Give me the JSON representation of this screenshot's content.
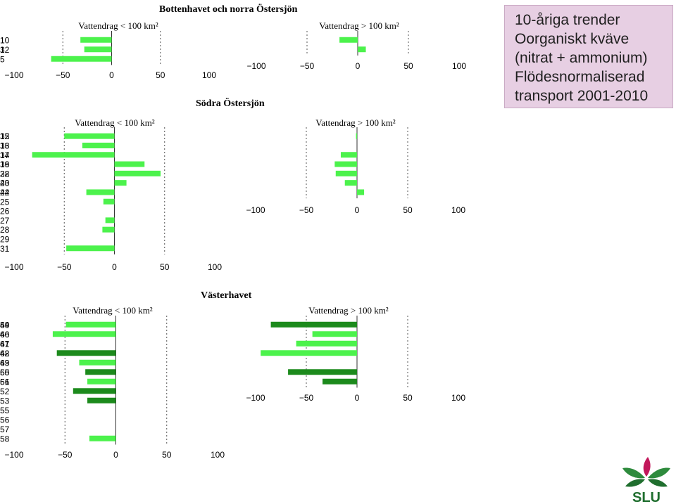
{
  "regions": [
    {
      "id": "bottenhavet",
      "title": "Bottenhavet och norra Östersjön"
    },
    {
      "id": "sodra",
      "title": "Södra Östersjön"
    },
    {
      "id": "vasterhavet",
      "title": "Västerhavet"
    }
  ],
  "info_box": {
    "lines": [
      "10-åriga trender",
      "Oorganiskt kväve",
      "(nitrat + ammonium)",
      "Flödesnormaliserad",
      "transport 2001-2010"
    ]
  },
  "logo": {
    "text": "SLU",
    "icon": "slu-leaf-logo-icon"
  },
  "colors": {
    "light_green": "#4cf24c",
    "dark_green": "#1c8a1c",
    "grid": "#555555"
  },
  "chart_data": [
    {
      "id": "bn-small",
      "type": "bar",
      "orientation": "horizontal",
      "title": "Vattendrag < 100 km²",
      "xlim": [
        -100,
        100
      ],
      "xticks": [
        "−100",
        "−50",
        "0",
        "50",
        "100"
      ],
      "bars": [
        {
          "label": "1",
          "value": -32,
          "color": "light"
        },
        {
          "label": "3",
          "value": -28,
          "color": "light"
        },
        {
          "label": "5",
          "value": -62,
          "color": "light"
        }
      ]
    },
    {
      "id": "bn-large",
      "type": "bar",
      "orientation": "horizontal",
      "title": "Vattendrag > 100 km²",
      "xlim": [
        -100,
        100
      ],
      "xticks": [
        "−100",
        "−50",
        "0",
        "50",
        "100"
      ],
      "bars": [
        {
          "label": "10",
          "value": -18,
          "color": "light"
        },
        {
          "label": "12",
          "value": 8,
          "color": "light"
        }
      ]
    },
    {
      "id": "so-small",
      "type": "bar",
      "orientation": "horizontal",
      "title": "Vattendrag < 100 km²",
      "xlim": [
        -100,
        100
      ],
      "xticks": [
        "−100",
        "−50",
        "0",
        "50",
        "100"
      ],
      "bars": [
        {
          "label": "15",
          "value": -50,
          "color": "light"
        },
        {
          "label": "16",
          "value": -32,
          "color": "light"
        },
        {
          "label": "17",
          "value": -82,
          "color": "light"
        },
        {
          "label": "19",
          "value": 30,
          "color": "light"
        },
        {
          "label": "22",
          "value": 46,
          "color": "light"
        },
        {
          "label": "23",
          "value": 12,
          "color": "light"
        },
        {
          "label": "24",
          "value": -28,
          "color": "light"
        },
        {
          "label": "25",
          "value": -11,
          "color": "light"
        },
        {
          "label": "26",
          "value": null,
          "color": "light"
        },
        {
          "label": "27",
          "value": -9,
          "color": "light"
        },
        {
          "label": "28",
          "value": -12,
          "color": "light"
        },
        {
          "label": "29",
          "value": null,
          "color": "light"
        },
        {
          "label": "31",
          "value": -48,
          "color": "light"
        }
      ]
    },
    {
      "id": "so-large",
      "type": "bar",
      "orientation": "horizontal",
      "title": "Vattendrag > 100 km²",
      "xlim": [
        -100,
        100
      ],
      "xticks": [
        "−100",
        "−50",
        "0",
        "50",
        "100"
      ],
      "bars": [
        {
          "label": "32",
          "value": -1,
          "color": "light"
        },
        {
          "label": "33",
          "value": null,
          "color": "light"
        },
        {
          "label": "34",
          "value": -16,
          "color": "light"
        },
        {
          "label": "36",
          "value": -22,
          "color": "light"
        },
        {
          "label": "38",
          "value": -21,
          "color": "light"
        },
        {
          "label": "40",
          "value": -12,
          "color": "light"
        },
        {
          "label": "42",
          "value": 7,
          "color": "light"
        }
      ]
    },
    {
      "id": "vh-small",
      "type": "bar",
      "orientation": "horizontal",
      "title": "Vattendrag < 100 km²",
      "xlim": [
        -100,
        100
      ],
      "xticks": [
        "−100",
        "−50",
        "0",
        "50",
        "100"
      ],
      "bars": [
        {
          "label": "44",
          "value": -49,
          "color": "light"
        },
        {
          "label": "46",
          "value": -62,
          "color": "light"
        },
        {
          "label": "47",
          "value": null,
          "color": "light"
        },
        {
          "label": "48",
          "value": -58,
          "color": "dark"
        },
        {
          "label": "49",
          "value": -36,
          "color": "light"
        },
        {
          "label": "50",
          "value": -30,
          "color": "dark"
        },
        {
          "label": "51",
          "value": -28,
          "color": "light"
        },
        {
          "label": "52",
          "value": -42,
          "color": "dark"
        },
        {
          "label": "53",
          "value": -28,
          "color": "dark"
        },
        {
          "label": "55",
          "value": null,
          "color": "light"
        },
        {
          "label": "56",
          "value": null,
          "color": "light"
        },
        {
          "label": "57",
          "value": null,
          "color": "light"
        },
        {
          "label": "58",
          "value": -26,
          "color": "light"
        }
      ]
    },
    {
      "id": "vh-large",
      "type": "bar",
      "orientation": "horizontal",
      "title": "Vattendrag > 100 km²",
      "xlim": [
        -100,
        100
      ],
      "xticks": [
        "−100",
        "−50",
        "0",
        "50",
        "100"
      ],
      "bars": [
        {
          "label": "59",
          "value": -85,
          "color": "dark"
        },
        {
          "label": "60",
          "value": -44,
          "color": "light"
        },
        {
          "label": "61",
          "value": -60,
          "color": "light"
        },
        {
          "label": "62",
          "value": -95,
          "color": "light"
        },
        {
          "label": "63",
          "value": null,
          "color": "light"
        },
        {
          "label": "65",
          "value": -68,
          "color": "dark"
        },
        {
          "label": "66",
          "value": -34,
          "color": "dark"
        }
      ]
    }
  ]
}
